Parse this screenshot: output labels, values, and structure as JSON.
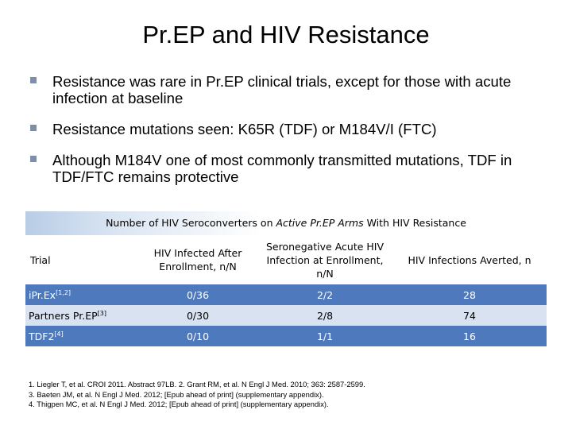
{
  "title": "Pr.EP and HIV Resistance",
  "bullets": [
    "Resistance was rare in Pr.EP clinical trials, except for those with acute infection at baseline",
    "Resistance mutations seen: K65R (TDF) or M184V/I (FTC)",
    "Although M184V one of most commonly transmitted mutations, TDF in TDF/FTC remains protective"
  ],
  "table": {
    "caption_pre": "Number of HIV Seroconverters on ",
    "caption_em": "Active Pr.EP Arms",
    "caption_post": " With HIV Resistance",
    "headers": [
      "Trial",
      "HIV Infected After Enrollment, n/N",
      "Seronegative Acute HIV Infection at Enrollment, n/N",
      "HIV Infections Averted, n"
    ],
    "rows": [
      {
        "trial": "iPr.Ex",
        "ref": "[1,2]",
        "after": "0/36",
        "acute": "2/2",
        "averted": "28"
      },
      {
        "trial": "Partners Pr.EP",
        "ref": "[3]",
        "after": "0/30",
        "acute": "2/8",
        "averted": "74"
      },
      {
        "trial": "TDF2",
        "ref": "[4]",
        "after": "0/10",
        "acute": "1/1",
        "averted": "16"
      }
    ]
  },
  "references": [
    "1. Liegler T, et al. CROI 2011. Abstract 97LB. 2. Grant RM, et al. N Engl J Med. 2010; 363: 2587-2599.",
    "3. Baeten JM, et al. N Engl J Med. 2012; [Epub ahead of print] (supplementary appendix).",
    "4. Thigpen MC, et al. N Engl J Med. 2012; [Epub ahead of print] (supplementary appendix)."
  ],
  "colors": {
    "row_blue": "#4f79bd",
    "row_light": "#d9e2f0",
    "bullet_mark": "#7f8fa9"
  }
}
